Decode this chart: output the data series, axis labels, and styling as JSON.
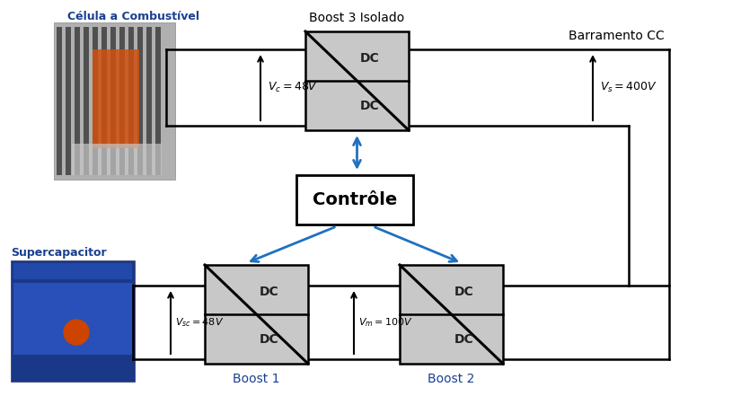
{
  "bg_color": "#ffffff",
  "box_fill": "#c8c8c8",
  "box_edge": "#000000",
  "line_color": "#000000",
  "arrow_color": "#2070c0",
  "text_color": "#000000",
  "boost3_label": "Boost 3 Isolado",
  "boost1_label": "Boost 1",
  "boost2_label": "Boost 2",
  "controle_label": "Contrôle",
  "fuel_cell_label": "Célula a Combustível",
  "supercap_label": "Supercapacitor",
  "barramento_label": "Barramento CC",
  "vc_label": "$V_c = 48V$",
  "vsc_label": "$V_{sc} = 48V$",
  "vm_label": "$V_m = 100V$",
  "vs_label": "$V_s = 400V$",
  "fuel_cell_color": "#c8a060",
  "supercap_color": "#1a3a8a"
}
